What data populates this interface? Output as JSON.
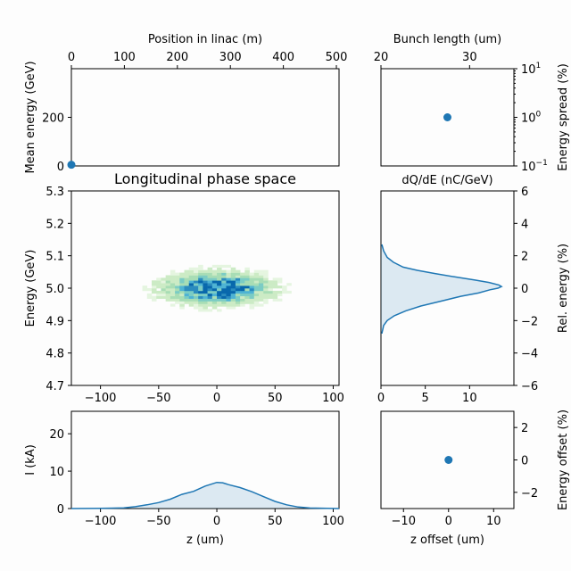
{
  "chart_data": [
    {
      "id": "mean_energy",
      "type": "scatter",
      "title": "",
      "xlabel": "Position in linac (m)",
      "ylabel": "Mean energy (GeV)",
      "xlim": [
        0,
        505
      ],
      "ylim": [
        0,
        400
      ],
      "xticks": [
        0,
        100,
        200,
        300,
        400,
        500
      ],
      "yticks": [
        0,
        200
      ],
      "x_axis_position": "top",
      "points": [
        {
          "x": 0,
          "y": 5.0
        }
      ],
      "color": "#1f77b4"
    },
    {
      "id": "energy_spread",
      "type": "scatter",
      "title": "",
      "xlabel": "Bunch length (um)",
      "ylabel": "Energy spread (%)",
      "xlim": [
        20,
        35
      ],
      "ylim": [
        0.1,
        10
      ],
      "y_scale": "log",
      "xticks": [
        20,
        30
      ],
      "yticks": [
        {
          "value": 0.1,
          "base": "10",
          "exp": "−1"
        },
        {
          "value": 1,
          "base": "10",
          "exp": "0"
        },
        {
          "value": 10,
          "base": "10",
          "exp": "1"
        }
      ],
      "x_axis_position": "top",
      "y_axis_position": "right",
      "points": [
        {
          "x": 27.5,
          "y": 1.0
        }
      ],
      "color": "#1f77b4"
    },
    {
      "id": "phase_space",
      "type": "heatmap",
      "title": "Longitudinal phase space",
      "xlabel": "",
      "ylabel": "Energy (GeV)",
      "xlim": [
        -125,
        105
      ],
      "ylim": [
        4.7,
        5.3
      ],
      "xticks": [
        -100,
        -50,
        0,
        50,
        100
      ],
      "yticks": [
        4.7,
        4.8,
        4.9,
        5.0,
        5.1,
        5.2,
        5.3
      ],
      "colormap": "GnBu",
      "distribution": {
        "z_center": 0,
        "z_sigma": 27,
        "e_center": 5.0,
        "e_sigma": 0.03
      }
    },
    {
      "id": "energy_spectrum",
      "type": "area",
      "title": "dQ/dE (nC/GeV)",
      "xlabel": "",
      "ylabel": "Rel. energy (%)",
      "xlim": [
        0,
        15
      ],
      "ylim": [
        -6,
        6
      ],
      "xticks": [
        0,
        5,
        10
      ],
      "yticks": [
        -6,
        -4,
        -2,
        0,
        2,
        4,
        6
      ],
      "y_axis_position": "right",
      "orientation": "horizontal",
      "x": [
        0.1,
        0.3,
        0.7,
        1.5,
        2.8,
        4.5,
        6.8,
        9.0,
        11.0,
        12.3,
        13.2,
        13.6,
        13.3,
        12.2,
        10.6,
        8.3,
        6.1,
        4.1,
        2.5,
        1.4,
        0.7,
        0.3,
        0.1
      ],
      "y": [
        -2.8,
        -2.3,
        -2.0,
        -1.7,
        -1.4,
        -1.1,
        -0.8,
        -0.5,
        -0.3,
        -0.1,
        0.0,
        0.1,
        0.2,
        0.35,
        0.5,
        0.7,
        0.9,
        1.1,
        1.3,
        1.6,
        1.9,
        2.3,
        2.7
      ],
      "color": "#1f77b4"
    },
    {
      "id": "current",
      "type": "area",
      "title": "",
      "xlabel": "z (um)",
      "ylabel": "I (kA)",
      "xlim": [
        -125,
        105
      ],
      "ylim": [
        0,
        26
      ],
      "xticks": [
        -100,
        -50,
        0,
        50,
        100
      ],
      "yticks": [
        0,
        10,
        20
      ],
      "x": [
        -125,
        -100,
        -80,
        -70,
        -60,
        -50,
        -40,
        -30,
        -20,
        -10,
        0,
        5,
        10,
        20,
        30,
        40,
        50,
        60,
        70,
        80,
        100,
        105
      ],
      "y": [
        0,
        0.05,
        0.2,
        0.5,
        1.0,
        1.6,
        2.5,
        3.8,
        4.6,
        6.0,
        7.0,
        6.9,
        6.4,
        5.6,
        4.5,
        3.2,
        1.9,
        1.0,
        0.4,
        0.15,
        0.02,
        0
      ],
      "color": "#1f77b4"
    },
    {
      "id": "offset",
      "type": "scatter",
      "title": "",
      "xlabel": "z offset (um)",
      "ylabel": "Energy offset (%)",
      "xlim": [
        -15,
        14.5
      ],
      "ylim": [
        -3,
        3
      ],
      "xticks": [
        -10,
        0,
        10
      ],
      "yticks": [
        -2,
        0,
        2
      ],
      "y_axis_position": "right",
      "points": [
        {
          "x": 0,
          "y": 0
        }
      ],
      "color": "#1f77b4"
    }
  ]
}
